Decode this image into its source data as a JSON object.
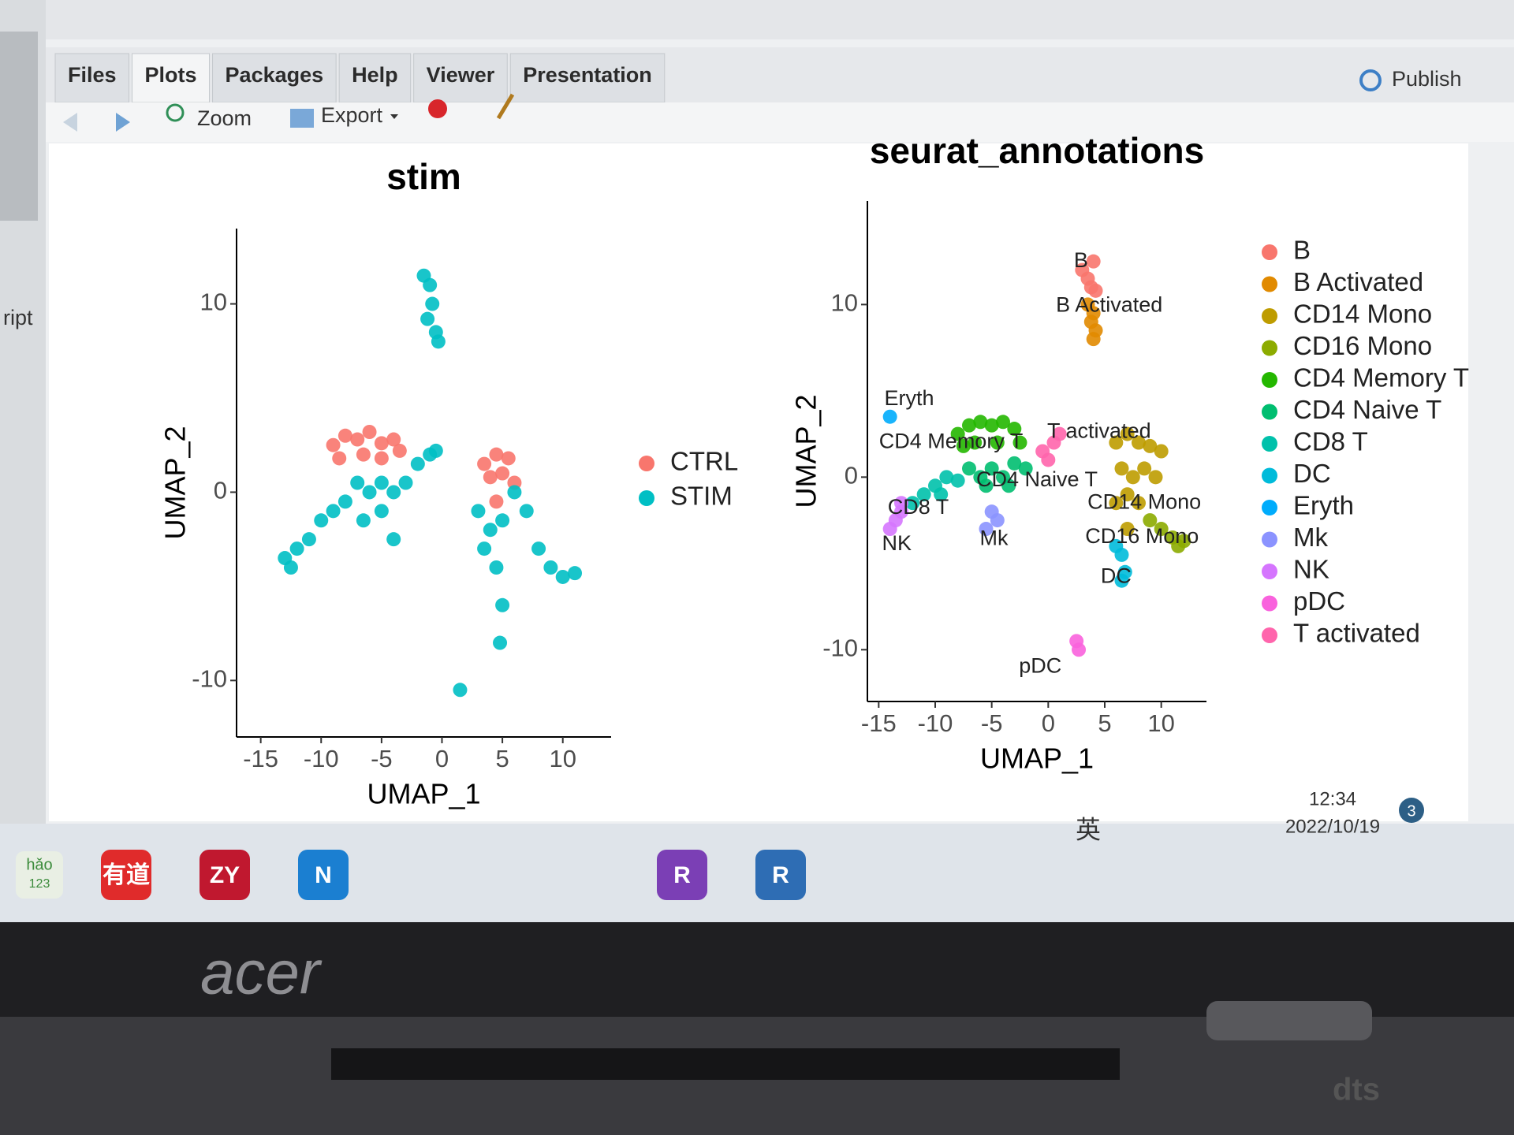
{
  "tabs": [
    "Files",
    "Plots",
    "Packages",
    "Help",
    "Viewer",
    "Presentation"
  ],
  "toolbar": {
    "zoom": "Zoom",
    "export": "Export",
    "publish": "Publish"
  },
  "sidebar": {
    "script_label": "ript"
  },
  "taskbar": {
    "hao_icon": [
      "hǎo",
      "123"
    ],
    "icons": [
      "有道",
      "ZY",
      "N",
      "R",
      "R"
    ],
    "ime": "英",
    "time": "12:34",
    "date": "2022/10/19",
    "notifications": 3
  },
  "laptop": {
    "brand": "acer",
    "audio": "dts"
  },
  "chart_data": [
    {
      "type": "scatter",
      "title": "stim",
      "xlabel": "UMAP_1",
      "ylabel": "UMAP_2",
      "xlim": [
        -17,
        14
      ],
      "ylim": [
        -13,
        14
      ],
      "xticks": [
        -15,
        -10,
        -5,
        0,
        5,
        10
      ],
      "yticks": [
        -10,
        0,
        10
      ],
      "legend": "right",
      "series": [
        {
          "name": "CTRL",
          "color": "#F8766D",
          "x": [
            -9,
            -8,
            -7,
            -6,
            -5,
            -4,
            -8.5,
            -6.5,
            -3.5,
            -5,
            3.5,
            4.5,
            5.5,
            4,
            5,
            6,
            4.5
          ],
          "y": [
            2.5,
            3,
            2.8,
            3.2,
            2.6,
            2.8,
            1.8,
            2,
            2.2,
            1.8,
            1.5,
            2,
            1.8,
            0.8,
            1,
            0.5,
            -0.5
          ]
        },
        {
          "name": "STIM",
          "color": "#00BFC4",
          "x": [
            -1.5,
            -1,
            -0.8,
            -1.2,
            -0.5,
            -0.3,
            -7,
            -6,
            -5,
            -4,
            -3,
            -8,
            -9,
            -10,
            -11,
            -12,
            -12.5,
            -13,
            -5,
            -4,
            -6.5,
            -2,
            -1,
            -0.5,
            3,
            4,
            5,
            3.5,
            4.5,
            5,
            4.8,
            6,
            7,
            8,
            9,
            10,
            11,
            1.5
          ],
          "y": [
            11.5,
            11,
            10,
            9.2,
            8.5,
            8,
            0.5,
            0,
            0.5,
            0,
            0.5,
            -0.5,
            -1,
            -1.5,
            -2.5,
            -3,
            -4,
            -3.5,
            -1,
            -2.5,
            -1.5,
            1.5,
            2,
            2.2,
            -1,
            -2,
            -1.5,
            -3,
            -4,
            -6,
            -8,
            0,
            -1,
            -3,
            -4,
            -4.5,
            -4.3,
            -10.5
          ]
        }
      ]
    },
    {
      "type": "scatter",
      "title": "seurat_annotations",
      "xlabel": "UMAP_1",
      "ylabel": "UMAP_2",
      "xlim": [
        -16,
        14
      ],
      "ylim": [
        -13,
        16
      ],
      "xticks": [
        -15,
        -10,
        -5,
        0,
        5,
        10
      ],
      "yticks": [
        -10,
        0,
        10
      ],
      "legend": "right",
      "series": [
        {
          "name": "B",
          "color": "#F8766D",
          "x": [
            3,
            3.5,
            4,
            3.8,
            4.2
          ],
          "y": [
            12,
            11.5,
            12.5,
            11,
            10.8
          ]
        },
        {
          "name": "B Activated",
          "color": "#E18A00",
          "x": [
            3.5,
            4,
            3.8,
            4.2,
            4
          ],
          "y": [
            10,
            9.5,
            9,
            8.5,
            8
          ]
        },
        {
          "name": "CD14 Mono",
          "color": "#BE9C00",
          "x": [
            6,
            7,
            8,
            9,
            10,
            6.5,
            7.5,
            8.5,
            9.5,
            7,
            8,
            6,
            7
          ],
          "y": [
            2,
            2.5,
            2,
            1.8,
            1.5,
            0.5,
            0,
            0.5,
            0,
            -1,
            -1.5,
            -1.5,
            -3
          ]
        },
        {
          "name": "CD16 Mono",
          "color": "#8CAB00",
          "x": [
            9,
            10,
            11,
            12,
            11.5
          ],
          "y": [
            -2.5,
            -3,
            -3.5,
            -3.7,
            -4
          ]
        },
        {
          "name": "CD4 Memory T",
          "color": "#24B700",
          "x": [
            -8,
            -7,
            -6,
            -5,
            -4,
            -3,
            -6.5,
            -4.5,
            -2.5,
            -7.5
          ],
          "y": [
            2.5,
            3,
            3.2,
            3,
            3.2,
            2.8,
            2,
            2,
            2,
            1.8
          ]
        },
        {
          "name": "CD4 Naive T",
          "color": "#00BE70",
          "x": [
            -7,
            -6,
            -5,
            -4,
            -3,
            -2,
            -5.5,
            -3.5
          ],
          "y": [
            0.5,
            0,
            0.5,
            0,
            0.8,
            0.5,
            -0.5,
            -0.5
          ]
        },
        {
          "name": "CD8 T",
          "color": "#00C1AB",
          "x": [
            -10,
            -9,
            -11,
            -12,
            -8,
            -9.5
          ],
          "y": [
            -0.5,
            0,
            -1,
            -1.5,
            -0.2,
            -1
          ]
        },
        {
          "name": "DC",
          "color": "#00BBDA",
          "x": [
            6,
            6.5,
            6.8,
            6.5
          ],
          "y": [
            -4,
            -4.5,
            -5.5,
            -6
          ]
        },
        {
          "name": "Eryth",
          "color": "#00ACFC",
          "x": [
            -14
          ],
          "y": [
            3.5
          ]
        },
        {
          "name": "Mk",
          "color": "#8B93FF",
          "x": [
            -5,
            -5.5,
            -4.5
          ],
          "y": [
            -2,
            -3,
            -2.5
          ]
        },
        {
          "name": "NK",
          "color": "#D575FE",
          "x": [
            -13,
            -13.5,
            -14,
            -13
          ],
          "y": [
            -1.5,
            -2.5,
            -3,
            -2
          ]
        },
        {
          "name": "pDC",
          "color": "#F962DD",
          "x": [
            2.5,
            2.7
          ],
          "y": [
            -9.5,
            -10
          ]
        },
        {
          "name": "T activated",
          "color": "#FF65AC",
          "x": [
            -0.5,
            0.5,
            1,
            0
          ],
          "y": [
            1.5,
            2,
            2.5,
            1
          ]
        }
      ],
      "annotations": [
        {
          "text": "B",
          "x": 2.9,
          "y": 12.5
        },
        {
          "text": "B Activated",
          "x": 5.4,
          "y": 9.9
        },
        {
          "text": "Eryth",
          "x": -12.3,
          "y": 4.5
        },
        {
          "text": "CD4 Memory T",
          "x": -8.6,
          "y": 2
        },
        {
          "text": "T activated",
          "x": 4.5,
          "y": 2.6
        },
        {
          "text": "CD4 Naive T",
          "x": -1,
          "y": -0.2
        },
        {
          "text": "CD8 T",
          "x": -11.5,
          "y": -1.8
        },
        {
          "text": "NK",
          "x": -13.4,
          "y": -3.9
        },
        {
          "text": "Mk",
          "x": -4.8,
          "y": -3.6
        },
        {
          "text": "CD14 Mono",
          "x": 8.5,
          "y": -1.5
        },
        {
          "text": "CD16 Mono",
          "x": 8.3,
          "y": -3.5
        },
        {
          "text": "DC",
          "x": 6,
          "y": -5.8
        },
        {
          "text": "pDC",
          "x": -0.7,
          "y": -11
        }
      ]
    }
  ]
}
